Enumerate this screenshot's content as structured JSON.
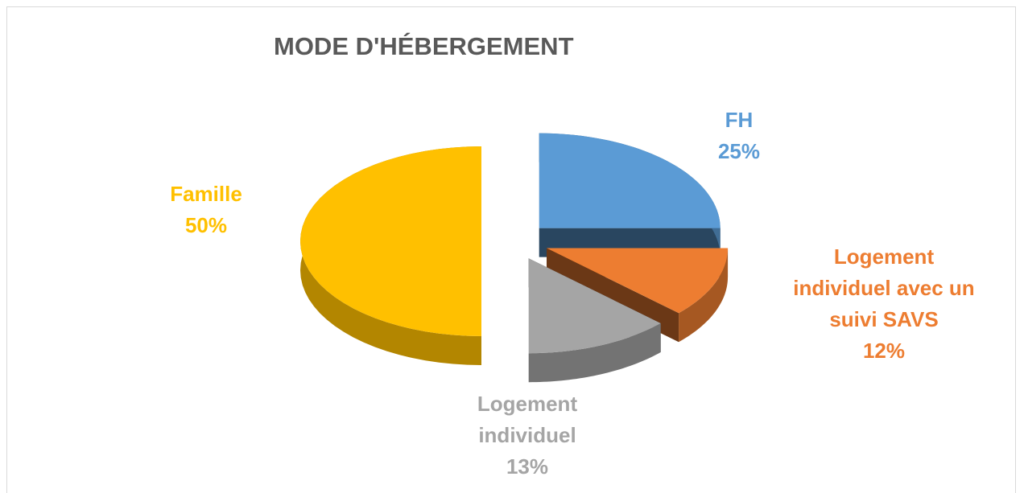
{
  "chart_data": {
    "type": "pie",
    "title": "MODE D'HÉBERGEMENT",
    "categories": [
      "FH",
      "Logement individuel avec un suivi SAVS",
      "Logement individuel",
      "Famille"
    ],
    "values": [
      25,
      12,
      13,
      50
    ],
    "value_labels": [
      "25%",
      "12%",
      "13%",
      "50%"
    ],
    "colors": [
      "#5b9bd5",
      "#ed7d31",
      "#a5a5a5",
      "#ffc000"
    ]
  }
}
